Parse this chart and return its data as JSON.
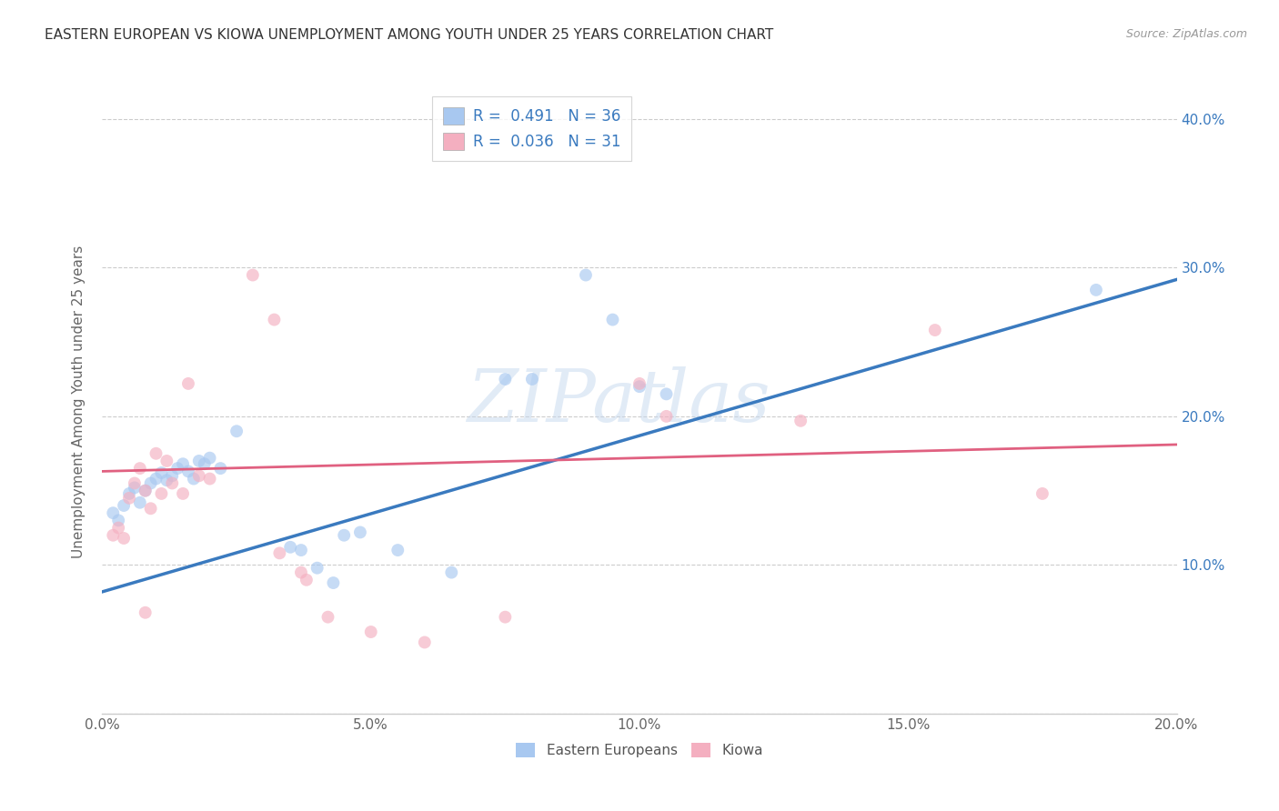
{
  "title": "EASTERN EUROPEAN VS KIOWA UNEMPLOYMENT AMONG YOUTH UNDER 25 YEARS CORRELATION CHART",
  "source": "Source: ZipAtlas.com",
  "xlabel": "",
  "ylabel": "Unemployment Among Youth under 25 years",
  "xlim": [
    0.0,
    0.2
  ],
  "ylim": [
    0.0,
    0.42
  ],
  "xticks": [
    0.0,
    0.05,
    0.1,
    0.15,
    0.2
  ],
  "yticks": [
    0.0,
    0.1,
    0.2,
    0.3,
    0.4
  ],
  "xtick_labels": [
    "0.0%",
    "5.0%",
    "10.0%",
    "15.0%",
    "20.0%"
  ],
  "ytick_labels": [
    "",
    "10.0%",
    "20.0%",
    "30.0%",
    "40.0%"
  ],
  "blue_color": "#a8c8f0",
  "pink_color": "#f4afc0",
  "blue_line_color": "#3a7abf",
  "pink_line_color": "#e06080",
  "r_blue": 0.491,
  "n_blue": 36,
  "r_pink": 0.036,
  "n_pink": 31,
  "legend_label_blue": "Eastern Europeans",
  "legend_label_pink": "Kiowa",
  "watermark": "ZIPatlas",
  "blue_line": [
    [
      0.0,
      0.082
    ],
    [
      0.2,
      0.292
    ]
  ],
  "pink_line": [
    [
      0.0,
      0.163
    ],
    [
      0.2,
      0.181
    ]
  ],
  "blue_points": [
    [
      0.002,
      0.135
    ],
    [
      0.003,
      0.13
    ],
    [
      0.004,
      0.14
    ],
    [
      0.005,
      0.148
    ],
    [
      0.006,
      0.152
    ],
    [
      0.007,
      0.142
    ],
    [
      0.008,
      0.15
    ],
    [
      0.009,
      0.155
    ],
    [
      0.01,
      0.158
    ],
    [
      0.011,
      0.162
    ],
    [
      0.012,
      0.157
    ],
    [
      0.013,
      0.16
    ],
    [
      0.014,
      0.165
    ],
    [
      0.015,
      0.168
    ],
    [
      0.016,
      0.163
    ],
    [
      0.017,
      0.158
    ],
    [
      0.018,
      0.17
    ],
    [
      0.019,
      0.168
    ],
    [
      0.02,
      0.172
    ],
    [
      0.022,
      0.165
    ],
    [
      0.025,
      0.19
    ],
    [
      0.035,
      0.112
    ],
    [
      0.037,
      0.11
    ],
    [
      0.04,
      0.098
    ],
    [
      0.043,
      0.088
    ],
    [
      0.045,
      0.12
    ],
    [
      0.048,
      0.122
    ],
    [
      0.055,
      0.11
    ],
    [
      0.065,
      0.095
    ],
    [
      0.075,
      0.225
    ],
    [
      0.08,
      0.225
    ],
    [
      0.09,
      0.295
    ],
    [
      0.095,
      0.265
    ],
    [
      0.1,
      0.22
    ],
    [
      0.105,
      0.215
    ],
    [
      0.185,
      0.285
    ]
  ],
  "pink_points": [
    [
      0.002,
      0.12
    ],
    [
      0.003,
      0.125
    ],
    [
      0.004,
      0.118
    ],
    [
      0.005,
      0.145
    ],
    [
      0.006,
      0.155
    ],
    [
      0.007,
      0.165
    ],
    [
      0.008,
      0.15
    ],
    [
      0.009,
      0.138
    ],
    [
      0.01,
      0.175
    ],
    [
      0.011,
      0.148
    ],
    [
      0.012,
      0.17
    ],
    [
      0.013,
      0.155
    ],
    [
      0.015,
      0.148
    ],
    [
      0.016,
      0.222
    ],
    [
      0.018,
      0.16
    ],
    [
      0.02,
      0.158
    ],
    [
      0.028,
      0.295
    ],
    [
      0.032,
      0.265
    ],
    [
      0.033,
      0.108
    ],
    [
      0.037,
      0.095
    ],
    [
      0.038,
      0.09
    ],
    [
      0.042,
      0.065
    ],
    [
      0.05,
      0.055
    ],
    [
      0.06,
      0.048
    ],
    [
      0.075,
      0.065
    ],
    [
      0.1,
      0.222
    ],
    [
      0.105,
      0.2
    ],
    [
      0.13,
      0.197
    ],
    [
      0.155,
      0.258
    ],
    [
      0.175,
      0.148
    ],
    [
      0.008,
      0.068
    ]
  ],
  "blue_scatter_alpha": 0.65,
  "pink_scatter_alpha": 0.65,
  "scatter_size": 100
}
